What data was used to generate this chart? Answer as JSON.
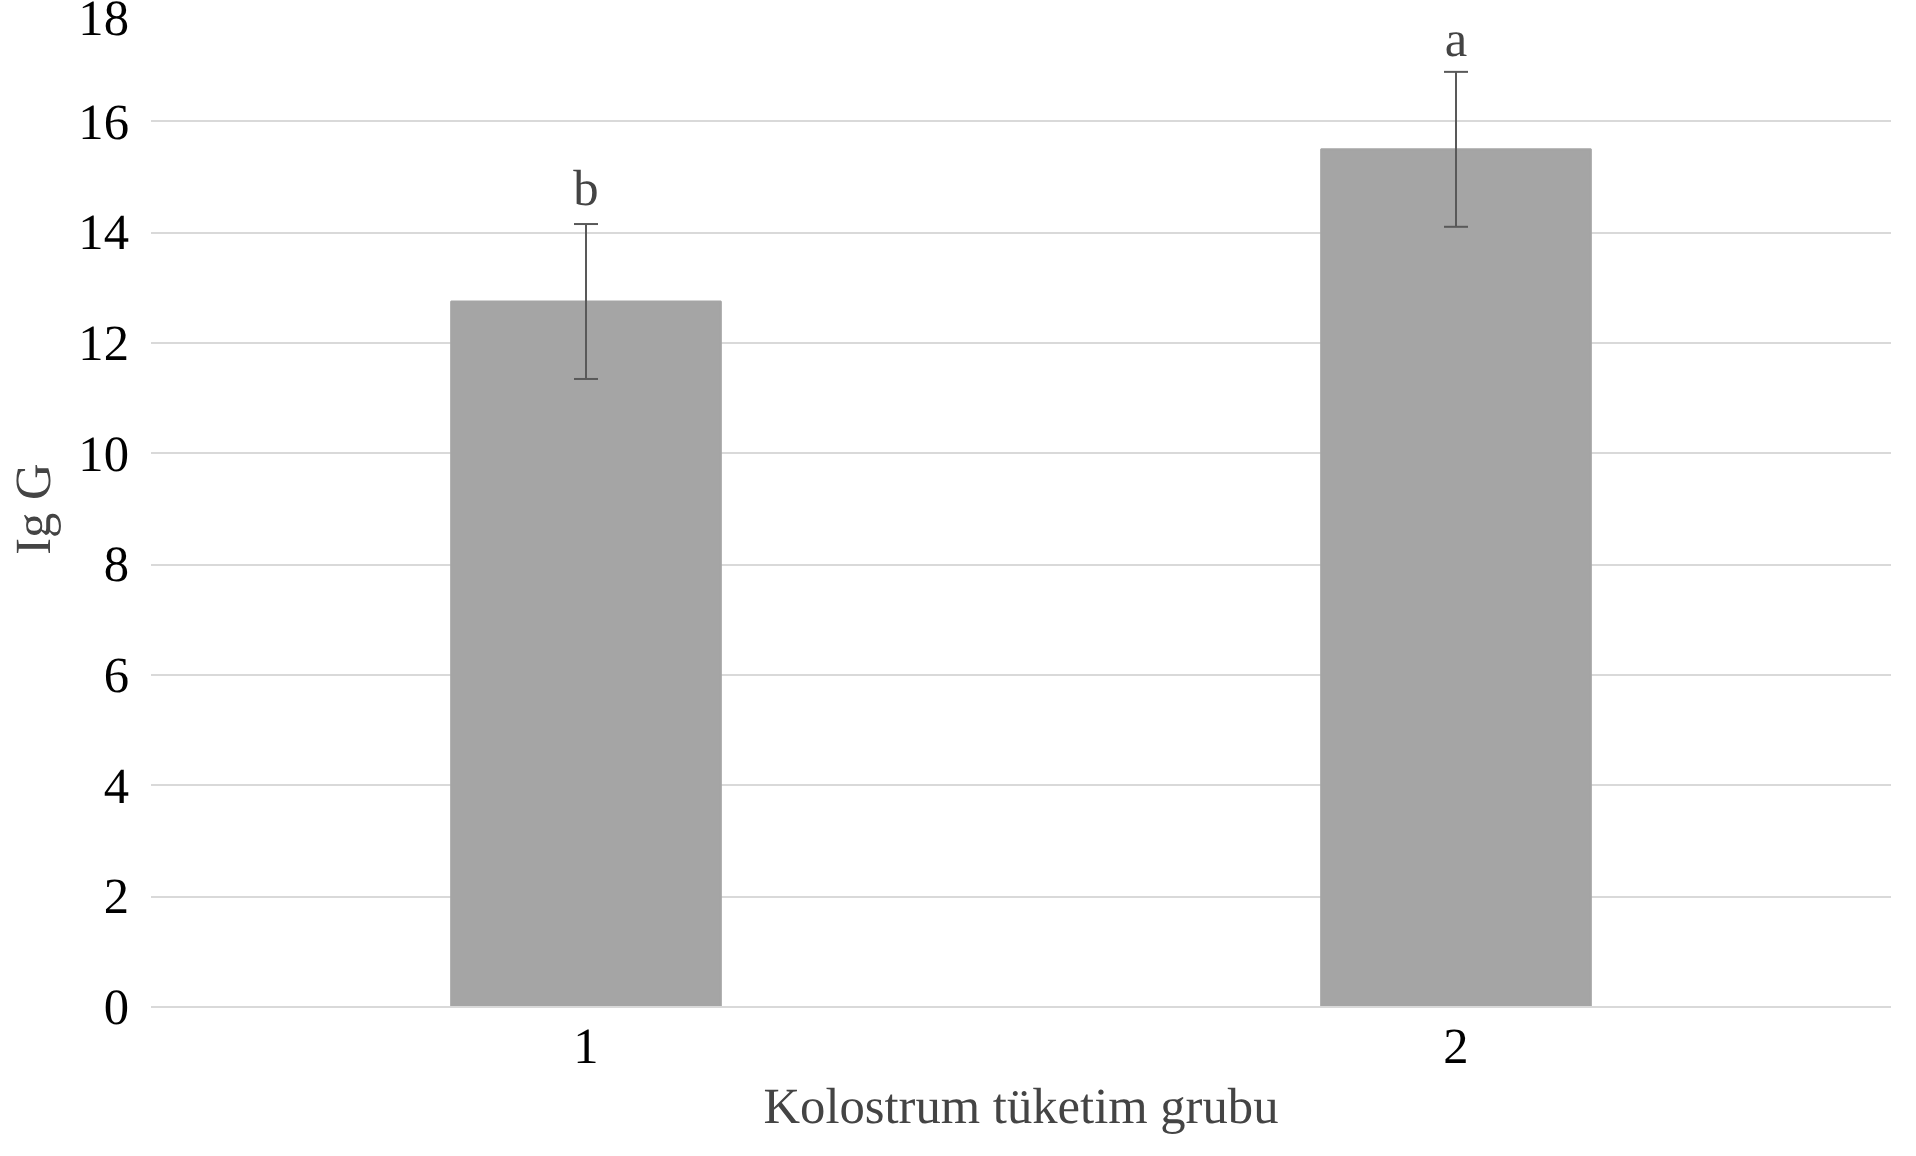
{
  "chart_data": {
    "type": "bar",
    "xlabel": "Kolostrum tüketim grubu",
    "ylabel": "Ig G",
    "categories": [
      "1",
      "2"
    ],
    "values": [
      12.75,
      15.5
    ],
    "errors": [
      1.4,
      1.4
    ],
    "color": "#a5a5a5",
    "ylim": [
      0,
      18
    ],
    "yticks": [
      0,
      2,
      4,
      6,
      8,
      10,
      12,
      14,
      16,
      18
    ],
    "grid": "y",
    "annotations": [
      {
        "text": "b",
        "x": "1",
        "y": 14.2
      },
      {
        "text": "a",
        "x": "2",
        "y": 16.9
      }
    ]
  }
}
